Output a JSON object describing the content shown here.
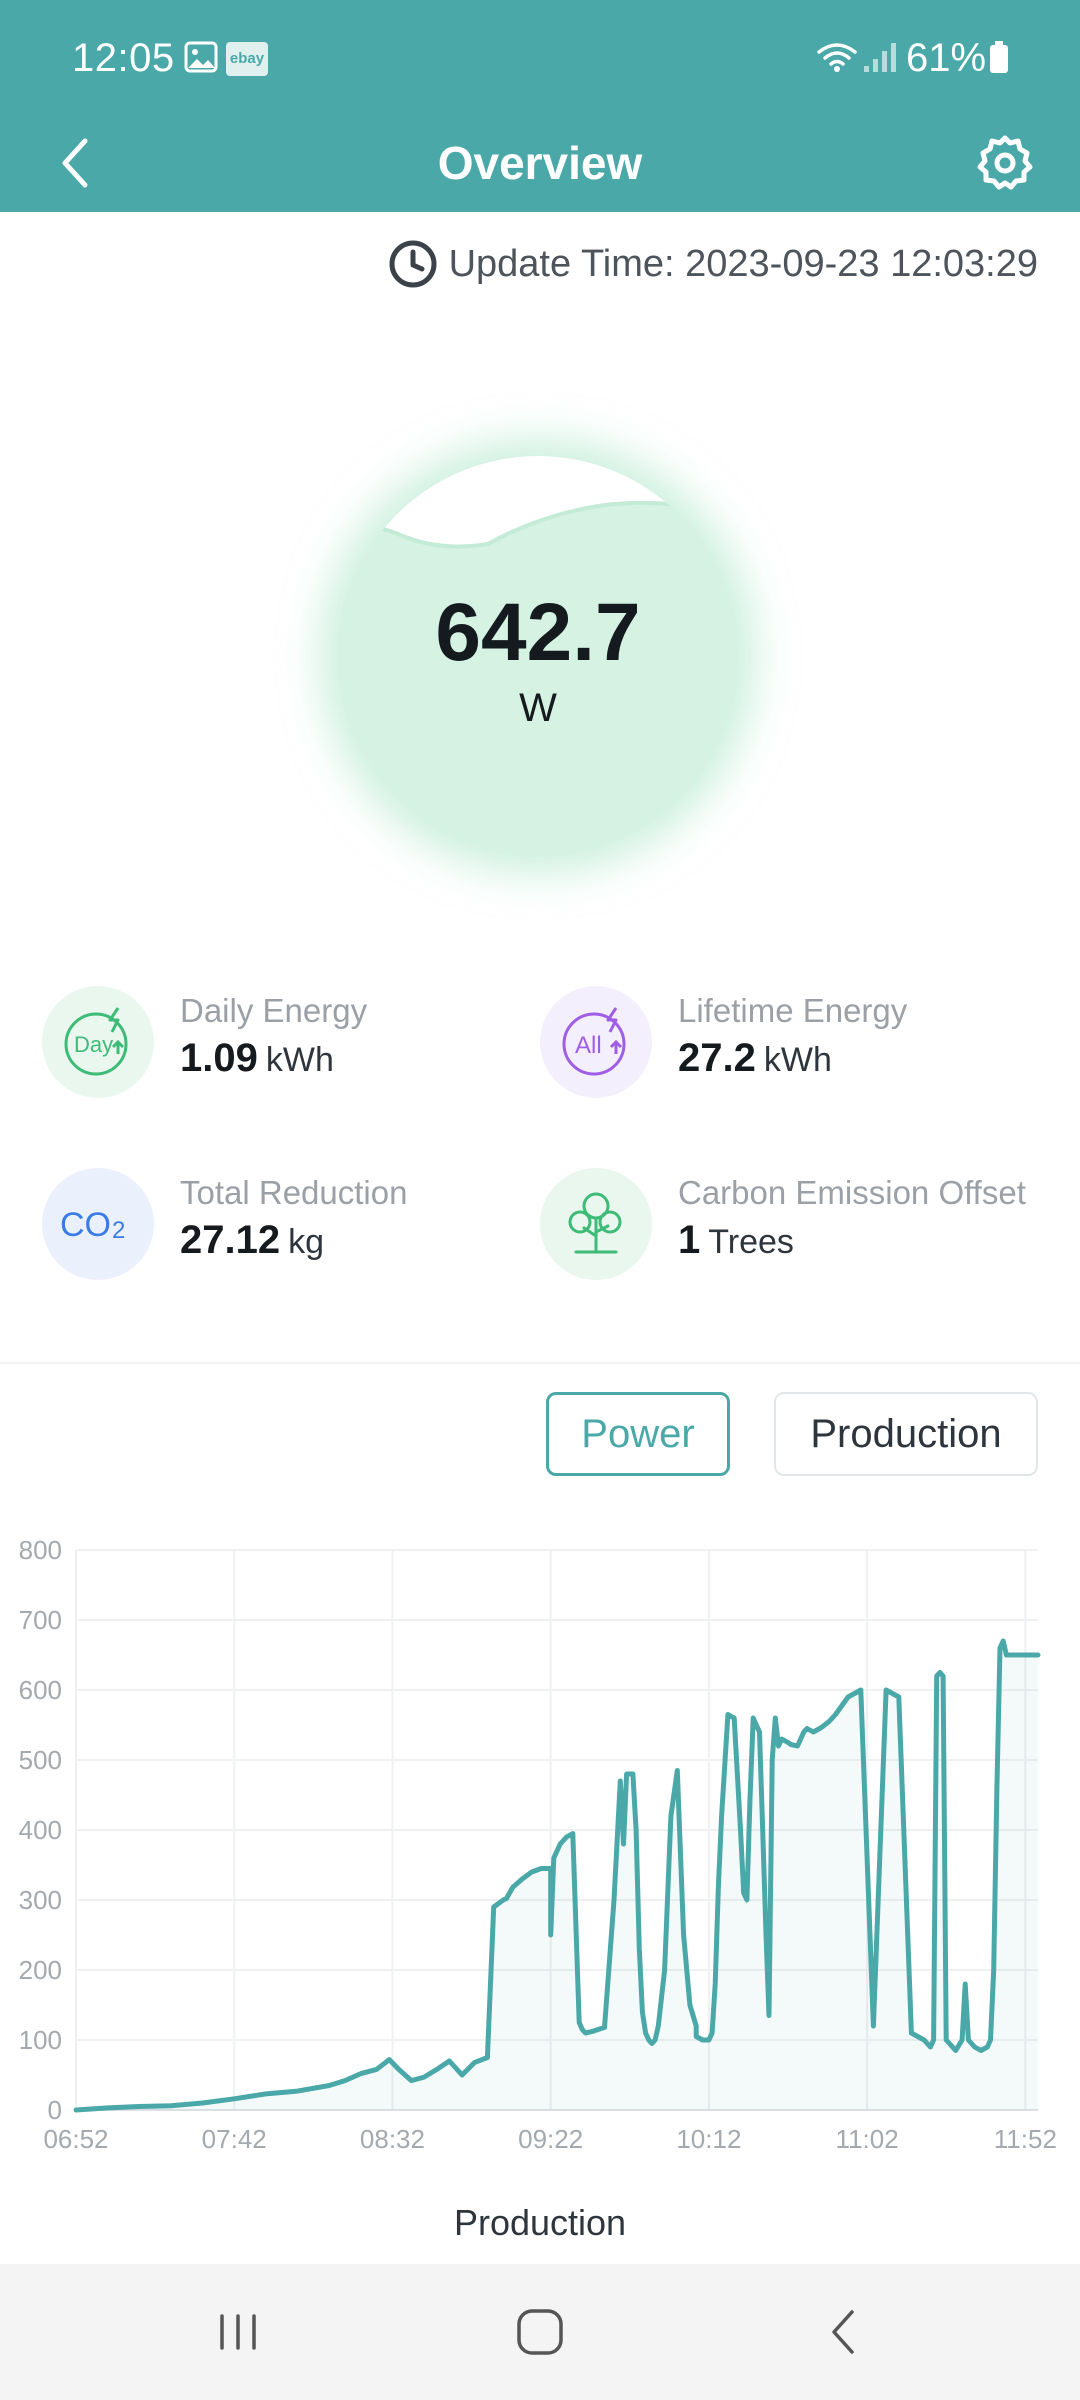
{
  "status_bar": {
    "time": "12:05",
    "ebay_label": "ebay",
    "battery": "61%",
    "icons": [
      "image-icon",
      "ebay-icon",
      "wifi-icon",
      "signal-icon",
      "battery-icon"
    ]
  },
  "header": {
    "title": "Overview",
    "back_icon": "chevron-left-icon",
    "settings_icon": "gear-icon"
  },
  "update": {
    "text": "Update Time: 2023-09-23 12:03:29",
    "icon": "clock-icon"
  },
  "power": {
    "value": "642.7",
    "unit": "W"
  },
  "stats": {
    "daily": {
      "label": "Daily Energy",
      "value": "1.09",
      "unit": "kWh",
      "icon_text": "Day",
      "color": "#3dbb77"
    },
    "lifetime": {
      "label": "Lifetime Energy",
      "value": "27.2",
      "unit": "kWh",
      "icon_text": "All",
      "color": "#a05ee6"
    },
    "reduction": {
      "label": "Total Reduction",
      "value": "27.12",
      "unit": "kg",
      "icon_text": "CO",
      "icon_sub": "2",
      "color": "#3b7be6"
    },
    "offset": {
      "label": "Carbon Emission Offset",
      "value": "1",
      "unit": "Trees",
      "icon": "tree-icon",
      "color": "#3dbb77"
    }
  },
  "toggles": {
    "power": "Power",
    "production": "Production",
    "active": "power"
  },
  "colors": {
    "accent": "#4aa9a8",
    "line": "#4aa9a8"
  },
  "chart_data": {
    "type": "area",
    "title": "",
    "xlabel": "",
    "ylabel": "",
    "ylim": [
      0,
      800
    ],
    "xlim": [
      "06:52",
      "11:56"
    ],
    "yticks": [
      0,
      100,
      200,
      300,
      400,
      500,
      600,
      700,
      800
    ],
    "xticks": [
      "06:52",
      "07:42",
      "08:32",
      "09:22",
      "10:12",
      "11:02",
      "11:52"
    ],
    "grid": true,
    "series": [
      {
        "x": [
          "06:52",
          "07:02",
          "07:12",
          "07:22",
          "07:32",
          "07:42",
          "07:52",
          "08:02",
          "08:12",
          "08:17",
          "08:22",
          "08:27",
          "08:31",
          "08:34",
          "08:38",
          "08:42",
          "08:46",
          "08:50",
          "08:54",
          "08:58",
          "09:02",
          "09:04",
          "09:07",
          "09:08",
          "09:10",
          "09:13",
          "09:16",
          "09:19",
          "09:22",
          "09:22",
          "09:23",
          "09:24",
          "09:25",
          "09:27",
          "09:29",
          "09:31",
          "09:32",
          "09:33",
          "09:35",
          "09:37",
          "09:39",
          "09:42",
          "09:44",
          "09:45",
          "09:46",
          "09:48",
          "09:49",
          "09:50",
          "09:51",
          "09:52",
          "09:53",
          "09:54",
          "09:55",
          "09:56",
          "09:58",
          "10:00",
          "10:02",
          "10:04",
          "10:06",
          "10:08",
          "10:08",
          "10:10",
          "10:12",
          "10:13",
          "10:14",
          "10:15",
          "10:16",
          "10:18",
          "10:20",
          "10:22",
          "10:23",
          "10:24",
          "10:25",
          "10:26",
          "10:28",
          "10:29",
          "10:30",
          "10:31",
          "10:32",
          "10:33",
          "10:34",
          "10:35",
          "10:37",
          "10:38",
          "10:40",
          "10:41",
          "10:42",
          "10:43",
          "10:45",
          "10:47",
          "10:48",
          "10:50",
          "10:52",
          "10:56",
          "11:00",
          "11:04",
          "11:08",
          "11:12",
          "11:16",
          "11:20",
          "11:21",
          "11:22",
          "11:23",
          "11:24",
          "11:25",
          "11:26",
          "11:27",
          "11:28",
          "11:30",
          "11:32",
          "11:33",
          "11:34",
          "11:36",
          "11:38",
          "11:40",
          "11:41",
          "11:42",
          "11:43",
          "11:44",
          "11:45",
          "11:46",
          "11:47",
          "11:48",
          "11:50",
          "11:52",
          "11:53",
          "11:54",
          "11:55",
          "11:56"
        ],
        "y": [
          0,
          3,
          5,
          6,
          10,
          16,
          23,
          27,
          35,
          42,
          52,
          58,
          72,
          58,
          42,
          47,
          58,
          70,
          50,
          68,
          75,
          290,
          300,
          302,
          318,
          330,
          340,
          345,
          345,
          250,
          360,
          370,
          380,
          390,
          395,
          125,
          115,
          110,
          112,
          115,
          118,
          300,
          470,
          380,
          480,
          480,
          400,
          230,
          140,
          110,
          100,
          95,
          100,
          120,
          200,
          420,
          485,
          250,
          150,
          120,
          105,
          100,
          100,
          110,
          180,
          320,
          420,
          565,
          560,
          400,
          310,
          300,
          445,
          560,
          540,
          400,
          255,
          135,
          500,
          560,
          520,
          530,
          525,
          522,
          520,
          530,
          540,
          545,
          540,
          545,
          548,
          555,
          565,
          590,
          600,
          120,
          600,
          590,
          110,
          100,
          95,
          90,
          100,
          620,
          625,
          620,
          100,
          95,
          85,
          100,
          180,
          100,
          90,
          85,
          90,
          100,
          200,
          460,
          660,
          670,
          650,
          650,
          650,
          650,
          650,
          650,
          650,
          650,
          650
        ]
      }
    ],
    "caption": "Production"
  },
  "navbar": {
    "icons": [
      "recents-icon",
      "home-icon",
      "back-icon"
    ]
  }
}
